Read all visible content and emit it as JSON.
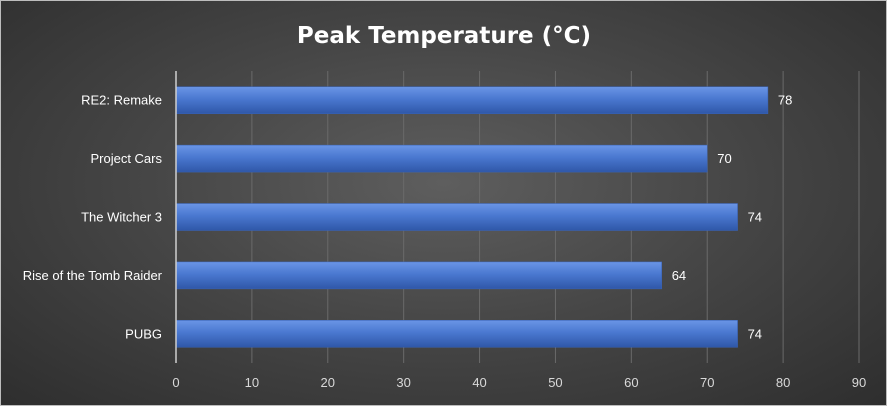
{
  "chart_data": {
    "type": "bar",
    "orientation": "horizontal",
    "title": "Peak Temperature (°C)",
    "xlabel": "",
    "ylabel": "",
    "categories": [
      "RE2: Remake",
      "Project Cars",
      "The Witcher 3",
      "Rise of the Tomb Raider",
      "PUBG"
    ],
    "values": [
      78,
      70,
      74,
      64,
      74
    ],
    "xlim": [
      0,
      90
    ],
    "ticks": [
      "0",
      "10",
      "20",
      "30",
      "40",
      "50",
      "60",
      "70",
      "80",
      "90"
    ],
    "grid": true,
    "legend": "none",
    "colors": {
      "bar": "#4472c4",
      "bar_light": "#5b8ae0",
      "bar_dark": "#2f55a3",
      "background": "#474747",
      "text": "#ffffff"
    }
  }
}
